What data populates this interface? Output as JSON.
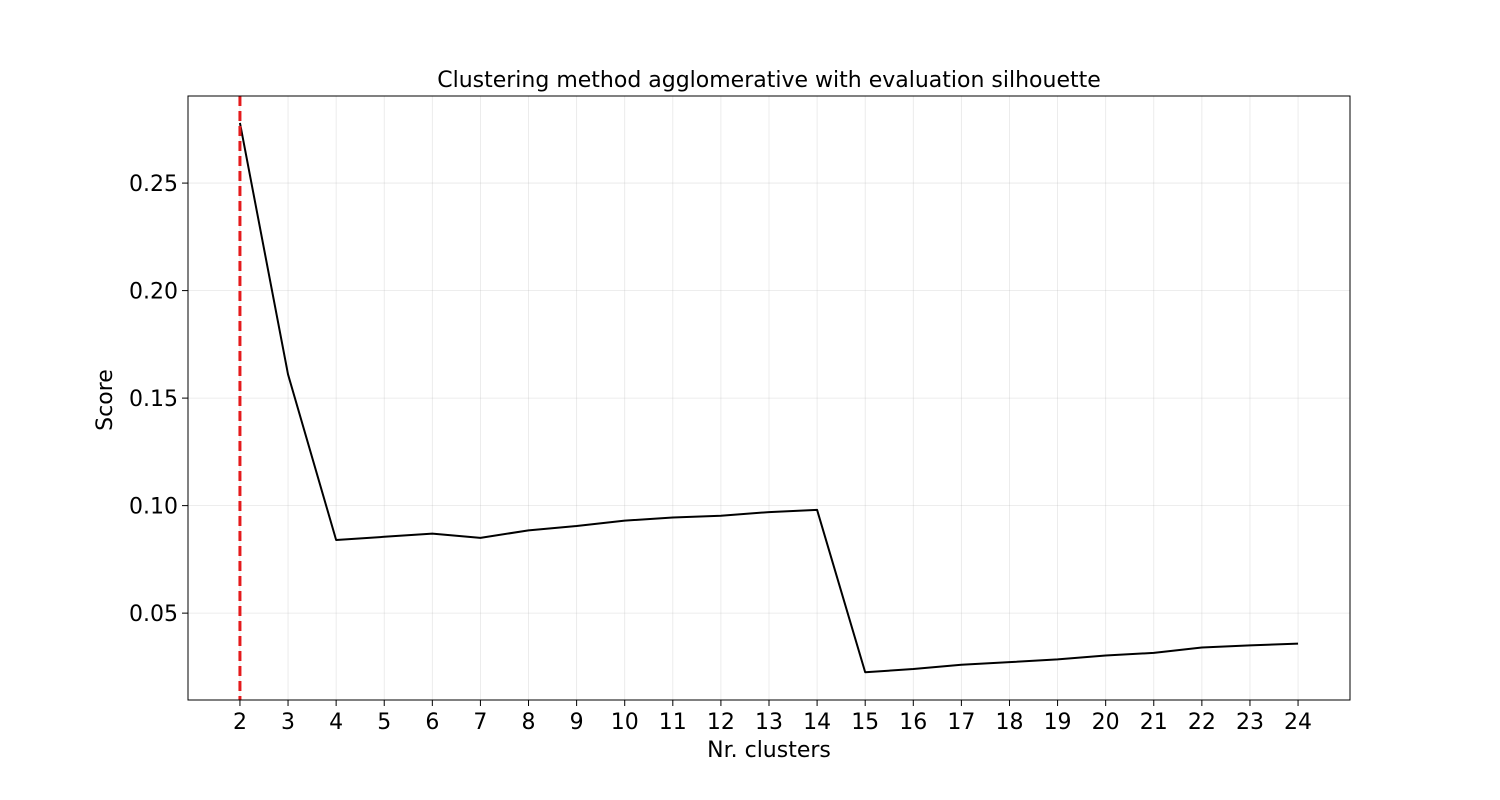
{
  "chart_data": {
    "type": "line",
    "title": "Clustering method agglomerative with evaluation silhouette",
    "xlabel": "Nr. clusters",
    "ylabel": "Score",
    "x": [
      2,
      3,
      4,
      5,
      6,
      7,
      8,
      9,
      10,
      11,
      12,
      13,
      14,
      15,
      16,
      17,
      18,
      19,
      20,
      21,
      22,
      23,
      24
    ],
    "series": [
      {
        "values": [
          0.278,
          0.161,
          0.084,
          0.0855,
          0.087,
          0.085,
          0.0885,
          0.0905,
          0.093,
          0.0945,
          0.0953,
          0.097,
          0.098,
          0.0225,
          0.024,
          0.026,
          0.0272,
          0.0285,
          0.0303,
          0.0315,
          0.034,
          0.035,
          0.0358
        ],
        "color": "#000000"
      }
    ],
    "xlim": [
      0.92,
      25.08
    ],
    "ylim": [
      0.0096,
      0.2905
    ],
    "xticks": [
      "2",
      "3",
      "4",
      "5",
      "6",
      "7",
      "8",
      "9",
      "10",
      "11",
      "12",
      "13",
      "14",
      "15",
      "16",
      "17",
      "18",
      "19",
      "20",
      "21",
      "22",
      "23",
      "24"
    ],
    "yticks": [
      0.05,
      0.1,
      0.15,
      0.2,
      0.25
    ],
    "ytick_labels": [
      "0.05",
      "0.10",
      "0.15",
      "0.20",
      "0.25"
    ],
    "vline": {
      "x": 2,
      "color": "#e41a1c",
      "style": "dashed"
    },
    "grid": true,
    "legend": false
  }
}
